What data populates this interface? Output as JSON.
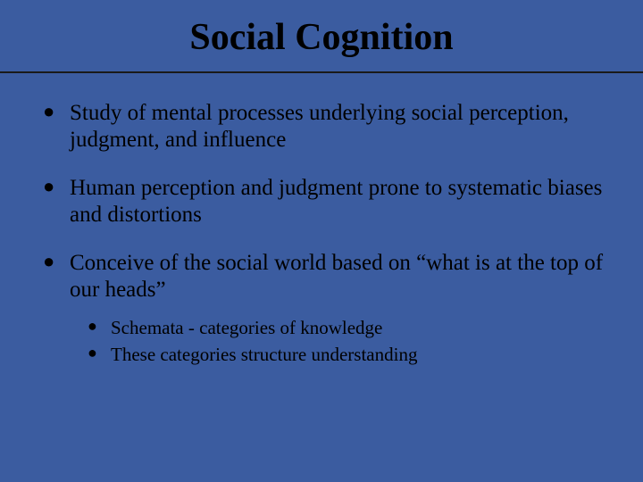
{
  "background_color": "#3b5ca0",
  "text_color": "#000000",
  "divider_color": "#1a1a1a",
  "title_fontsize": 42,
  "bullet_fontsize": 25,
  "sub_bullet_fontsize": 21,
  "title": "Social Cognition",
  "bullets": [
    {
      "text": "Study of mental processes underlying social perception, judgment, and influence"
    },
    {
      "text": "Human perception and judgment prone to systematic biases and distortions"
    },
    {
      "text": "Conceive of the social world based on “what is at the top of our heads”",
      "sub": [
        "Schemata -  categories of knowledge",
        "These categories structure understanding"
      ]
    }
  ]
}
